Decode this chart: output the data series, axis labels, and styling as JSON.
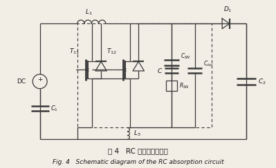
{
  "title_cn": "图 4   RC 吸收电路原理图",
  "title_en": "Fig. 4   Schematic diagram of the RC absorption circuit",
  "bg_color": "#f2ede5",
  "line_color": "#3a3a3a",
  "text_color": "#1a1a1a",
  "figsize": [
    3.99,
    2.44
  ],
  "dpi": 100
}
